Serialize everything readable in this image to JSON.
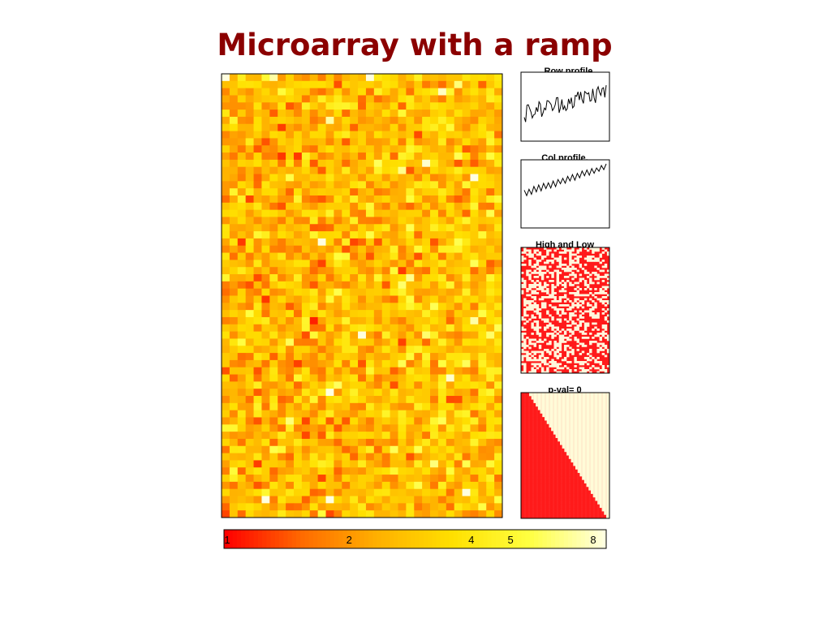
{
  "title": "Microarray with a ramp",
  "colors": {
    "title": "#8b0000",
    "ramp": [
      "#ff0000",
      "#ff6a00",
      "#ffb000",
      "#ffe000",
      "#ffff40",
      "#ffffe0"
    ],
    "low": "#ff1a1a",
    "high": "#fff6dc"
  },
  "chart_data": [
    {
      "id": "heatmap",
      "type": "heatmap",
      "title": "",
      "rows": 62,
      "cols": 35,
      "note": "random expression values with a left-to-right ramp"
    },
    {
      "id": "row_profile",
      "type": "line",
      "title": "Row profile.",
      "points": 62
    },
    {
      "id": "col_profile",
      "type": "line",
      "title": "Col profile.",
      "points": 35
    },
    {
      "id": "high_low",
      "type": "heatmap",
      "title": "High and Low"
    },
    {
      "id": "pval",
      "type": "heatmap",
      "title": "p-val=  0"
    },
    {
      "id": "colorbar",
      "type": "heatmap",
      "tick_labels": [
        "1",
        "2",
        "4",
        "5",
        "8"
      ],
      "tick_values": [
        1,
        2,
        4,
        5,
        8
      ],
      "scale": "log",
      "range": [
        1,
        8
      ]
    }
  ]
}
